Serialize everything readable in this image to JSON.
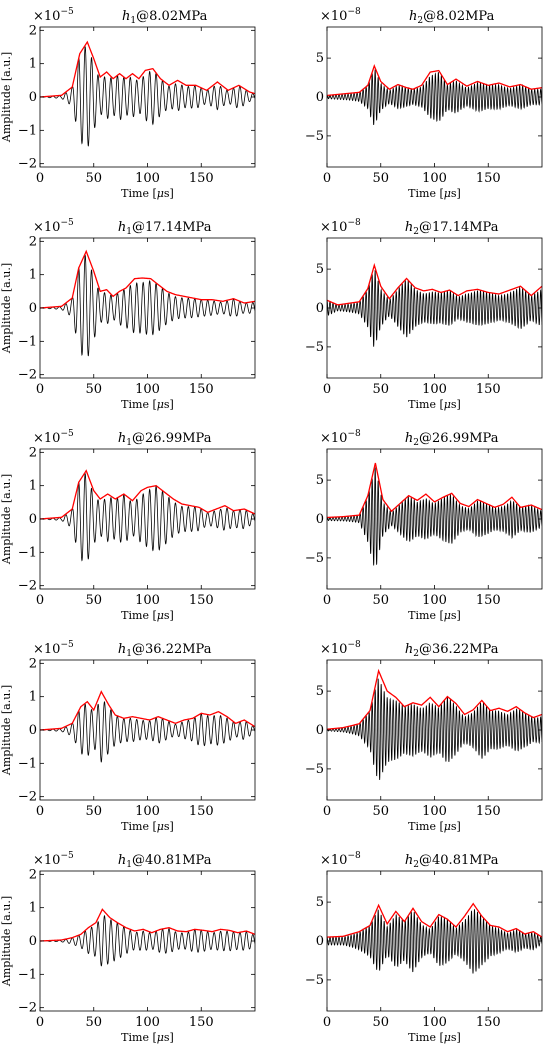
{
  "figure": {
    "rows": 5,
    "cols": 2,
    "ylabel": "Amplitude [a.u.]",
    "xlabel": "Time [μs]"
  },
  "chart_data": [
    {
      "type": "line",
      "title": "h1@8.02MPa",
      "title_var": "h",
      "title_sub": "1",
      "title_rest": "@8.02MPa",
      "exponent_label": "×10^-5",
      "exp_base": "×10",
      "exp_pow": "−5",
      "xlabel": "Time [μs]",
      "ylabel": "Amplitude [a.u.]",
      "xlim": [
        0,
        200
      ],
      "ylim": [
        -2.1,
        2.1
      ],
      "xticks": [
        0,
        50,
        100,
        150
      ],
      "yticks": [
        -2,
        -1,
        0,
        1,
        2
      ],
      "series": [
        {
          "role": "signal",
          "color": "#000000",
          "carrier_period_us": 6.0
        },
        {
          "role": "envelope",
          "color": "#ff0000",
          "x": [
            0,
            20,
            30,
            37,
            44,
            50,
            56,
            62,
            68,
            74,
            80,
            86,
            92,
            98,
            105,
            112,
            120,
            128,
            136,
            145,
            155,
            165,
            175,
            185,
            195,
            200
          ],
          "y": [
            0.0,
            0.05,
            0.3,
            1.3,
            1.65,
            1.15,
            0.6,
            0.75,
            0.55,
            0.7,
            0.55,
            0.7,
            0.55,
            0.8,
            0.85,
            0.55,
            0.35,
            0.5,
            0.35,
            0.35,
            0.2,
            0.45,
            0.2,
            0.35,
            0.15,
            0.1
          ]
        }
      ]
    },
    {
      "type": "line",
      "title": "h2@8.02MPa",
      "title_var": "h",
      "title_sub": "2",
      "title_rest": "@8.02MPa",
      "exponent_label": "×10^-8",
      "exp_base": "×10",
      "exp_pow": "−8",
      "xlabel": "Time [μs]",
      "ylabel": "",
      "xlim": [
        0,
        200
      ],
      "ylim": [
        -9,
        9
      ],
      "xticks": [
        0,
        50,
        100,
        150
      ],
      "yticks": [
        -5,
        0,
        5
      ],
      "series": [
        {
          "role": "signal",
          "color": "#000000",
          "carrier_period_us": 2.8
        },
        {
          "role": "envelope",
          "color": "#ff0000",
          "x": [
            0,
            15,
            30,
            38,
            44,
            50,
            58,
            66,
            74,
            80,
            88,
            96,
            104,
            112,
            120,
            130,
            140,
            150,
            160,
            170,
            180,
            190,
            200
          ],
          "y": [
            0.2,
            0.4,
            0.6,
            1.5,
            4.0,
            2.0,
            1.0,
            1.6,
            1.2,
            1.0,
            1.5,
            3.2,
            3.4,
            1.6,
            2.3,
            1.4,
            2.0,
            1.5,
            1.8,
            1.3,
            1.6,
            1.0,
            1.2
          ]
        }
      ]
    },
    {
      "type": "line",
      "title": "h1@17.14MPa",
      "title_var": "h",
      "title_sub": "1",
      "title_rest": "@17.14MPa",
      "exponent_label": "×10^-5",
      "exp_base": "×10",
      "exp_pow": "−5",
      "xlabel": "Time [μs]",
      "ylabel": "Amplitude [a.u.]",
      "xlim": [
        0,
        200
      ],
      "ylim": [
        -2.1,
        2.1
      ],
      "xticks": [
        0,
        50,
        100,
        150
      ],
      "yticks": [
        -2,
        -1,
        0,
        1,
        2
      ],
      "series": [
        {
          "role": "signal",
          "color": "#000000",
          "carrier_period_us": 6.0
        },
        {
          "role": "envelope",
          "color": "#ff0000",
          "x": [
            0,
            20,
            30,
            36,
            43,
            50,
            56,
            62,
            68,
            74,
            80,
            88,
            95,
            103,
            110,
            118,
            126,
            134,
            142,
            150,
            160,
            170,
            180,
            190,
            200
          ],
          "y": [
            0.0,
            0.05,
            0.3,
            1.2,
            1.7,
            1.1,
            0.5,
            0.55,
            0.35,
            0.5,
            0.6,
            0.88,
            0.9,
            0.88,
            0.7,
            0.5,
            0.4,
            0.35,
            0.3,
            0.25,
            0.25,
            0.2,
            0.28,
            0.15,
            0.2
          ]
        }
      ]
    },
    {
      "type": "line",
      "title": "h2@17.14MPa",
      "title_var": "h",
      "title_sub": "2",
      "title_rest": "@17.14MPa",
      "exponent_label": "×10^-8",
      "exp_base": "×10",
      "exp_pow": "−8",
      "xlabel": "Time [μs]",
      "ylabel": "",
      "xlim": [
        0,
        200
      ],
      "ylim": [
        -9,
        9
      ],
      "xticks": [
        0,
        50,
        100,
        150
      ],
      "yticks": [
        -5,
        0,
        5
      ],
      "series": [
        {
          "role": "signal",
          "color": "#000000",
          "carrier_period_us": 2.8
        },
        {
          "role": "envelope",
          "color": "#ff0000",
          "x": [
            0,
            10,
            20,
            30,
            38,
            44,
            50,
            58,
            66,
            74,
            82,
            90,
            98,
            106,
            114,
            122,
            130,
            140,
            150,
            160,
            170,
            180,
            190,
            200
          ],
          "y": [
            1.0,
            0.4,
            0.6,
            0.8,
            2.5,
            5.5,
            2.8,
            1.2,
            2.6,
            3.8,
            2.6,
            2.2,
            2.4,
            2.0,
            2.3,
            1.6,
            2.2,
            2.4,
            2.0,
            1.8,
            2.3,
            2.8,
            1.6,
            2.8
          ]
        }
      ]
    },
    {
      "type": "line",
      "title": "h1@26.99MPa",
      "title_var": "h",
      "title_sub": "1",
      "title_rest": "@26.99MPa",
      "exponent_label": "×10^-5",
      "exp_base": "×10",
      "exp_pow": "−5",
      "xlabel": "Time [μs]",
      "ylabel": "Amplitude [a.u.]",
      "xlim": [
        0,
        200
      ],
      "ylim": [
        -2.1,
        2.1
      ],
      "xticks": [
        0,
        50,
        100,
        150
      ],
      "yticks": [
        -2,
        -1,
        0,
        1,
        2
      ],
      "series": [
        {
          "role": "signal",
          "color": "#000000",
          "carrier_period_us": 6.0
        },
        {
          "role": "envelope",
          "color": "#ff0000",
          "x": [
            0,
            20,
            30,
            36,
            43,
            50,
            56,
            63,
            70,
            78,
            86,
            94,
            100,
            108,
            116,
            124,
            132,
            140,
            148,
            156,
            164,
            172,
            180,
            190,
            200
          ],
          "y": [
            0.0,
            0.05,
            0.3,
            1.1,
            1.45,
            0.85,
            0.6,
            0.75,
            0.6,
            0.75,
            0.55,
            0.85,
            0.95,
            1.0,
            0.8,
            0.6,
            0.45,
            0.4,
            0.35,
            0.2,
            0.3,
            0.4,
            0.25,
            0.3,
            0.15
          ]
        }
      ]
    },
    {
      "type": "line",
      "title": "h2@26.99MPa",
      "title_var": "h",
      "title_sub": "2",
      "title_rest": "@26.99MPa",
      "exponent_label": "×10^-8",
      "exp_base": "×10",
      "exp_pow": "−8",
      "xlabel": "Time [μs]",
      "ylabel": "",
      "xlim": [
        0,
        200
      ],
      "ylim": [
        -9,
        9
      ],
      "xticks": [
        0,
        50,
        100,
        150
      ],
      "yticks": [
        -5,
        0,
        5
      ],
      "series": [
        {
          "role": "signal",
          "color": "#000000",
          "carrier_period_us": 2.8
        },
        {
          "role": "envelope",
          "color": "#ff0000",
          "x": [
            0,
            15,
            30,
            38,
            45,
            52,
            60,
            68,
            76,
            84,
            92,
            100,
            108,
            116,
            124,
            132,
            140,
            148,
            156,
            164,
            172,
            180,
            190,
            200
          ],
          "y": [
            0.2,
            0.3,
            0.5,
            3.0,
            7.2,
            2.5,
            1.0,
            2.0,
            3.0,
            2.4,
            3.2,
            2.2,
            2.8,
            3.3,
            2.0,
            1.6,
            2.5,
            2.0,
            1.5,
            1.9,
            2.8,
            1.5,
            1.8,
            1.2
          ]
        }
      ]
    },
    {
      "type": "line",
      "title": "h1@36.22MPa",
      "title_var": "h",
      "title_sub": "1",
      "title_rest": "@36.22MPa",
      "exponent_label": "×10^-5",
      "exp_base": "×10",
      "exp_pow": "−5",
      "xlabel": "Time [μs]",
      "ylabel": "Amplitude [a.u.]",
      "xlim": [
        0,
        200
      ],
      "ylim": [
        -2.1,
        2.1
      ],
      "xticks": [
        0,
        50,
        100,
        150
      ],
      "yticks": [
        -2,
        -1,
        0,
        1,
        2
      ],
      "series": [
        {
          "role": "signal",
          "color": "#000000",
          "carrier_period_us": 6.0
        },
        {
          "role": "envelope",
          "color": "#ff0000",
          "x": [
            0,
            20,
            30,
            38,
            44,
            50,
            57,
            64,
            70,
            78,
            86,
            94,
            102,
            110,
            118,
            126,
            134,
            142,
            150,
            158,
            166,
            174,
            182,
            190,
            200
          ],
          "y": [
            0.0,
            0.05,
            0.2,
            0.7,
            0.85,
            0.6,
            1.15,
            0.75,
            0.45,
            0.35,
            0.4,
            0.35,
            0.3,
            0.4,
            0.3,
            0.2,
            0.3,
            0.35,
            0.5,
            0.45,
            0.55,
            0.4,
            0.2,
            0.3,
            0.1
          ]
        }
      ]
    },
    {
      "type": "line",
      "title": "h2@36.22MPa",
      "title_var": "h",
      "title_sub": "2",
      "title_rest": "@36.22MPa",
      "exponent_label": "×10^-8",
      "exp_base": "×10",
      "exp_pow": "−8",
      "xlabel": "Time [μs]",
      "ylabel": "",
      "xlim": [
        0,
        200
      ],
      "ylim": [
        -9,
        9
      ],
      "xticks": [
        0,
        50,
        100,
        150
      ],
      "yticks": [
        -5,
        0,
        5
      ],
      "series": [
        {
          "role": "signal",
          "color": "#000000",
          "carrier_period_us": 2.8
        },
        {
          "role": "envelope",
          "color": "#ff0000",
          "x": [
            0,
            15,
            30,
            40,
            48,
            56,
            64,
            72,
            80,
            88,
            96,
            104,
            112,
            120,
            128,
            136,
            144,
            152,
            160,
            168,
            176,
            184,
            192,
            200
          ],
          "y": [
            0.1,
            0.3,
            0.8,
            2.5,
            7.6,
            5.0,
            4.2,
            3.0,
            3.5,
            3.2,
            4.2,
            3.0,
            4.3,
            3.4,
            2.0,
            2.6,
            3.8,
            2.5,
            2.8,
            2.4,
            3.0,
            2.2,
            1.6,
            2.0
          ]
        }
      ]
    },
    {
      "type": "line",
      "title": "h1@40.81MPa",
      "title_var": "h",
      "title_sub": "1",
      "title_rest": "@40.81MPa",
      "exponent_label": "×10^-5",
      "exp_base": "×10",
      "exp_pow": "−5",
      "xlabel": "Time [μs]",
      "ylabel": "Amplitude [a.u.]",
      "xlim": [
        0,
        200
      ],
      "ylim": [
        -2.1,
        2.1
      ],
      "xticks": [
        0,
        50,
        100,
        150
      ],
      "yticks": [
        -2,
        -1,
        0,
        1,
        2
      ],
      "series": [
        {
          "role": "signal",
          "color": "#000000",
          "carrier_period_us": 6.0
        },
        {
          "role": "envelope",
          "color": "#ff0000",
          "x": [
            0,
            20,
            30,
            38,
            45,
            52,
            58,
            65,
            72,
            80,
            88,
            96,
            104,
            112,
            120,
            128,
            136,
            144,
            152,
            160,
            168,
            176,
            184,
            192,
            200
          ],
          "y": [
            0.0,
            0.03,
            0.1,
            0.2,
            0.4,
            0.55,
            0.95,
            0.7,
            0.55,
            0.4,
            0.3,
            0.35,
            0.25,
            0.35,
            0.4,
            0.3,
            0.28,
            0.35,
            0.32,
            0.28,
            0.35,
            0.32,
            0.25,
            0.3,
            0.2
          ]
        }
      ]
    },
    {
      "type": "line",
      "title": "h2@40.81MPa",
      "title_var": "h",
      "title_sub": "2",
      "title_rest": "@40.81MPa",
      "exponent_label": "×10^-8",
      "exp_base": "×10",
      "exp_pow": "−8",
      "xlabel": "Time [μs]",
      "ylabel": "",
      "xlim": [
        0,
        200
      ],
      "ylim": [
        -9,
        9
      ],
      "xticks": [
        0,
        50,
        100,
        150
      ],
      "yticks": [
        -5,
        0,
        5
      ],
      "series": [
        {
          "role": "signal",
          "color": "#000000",
          "carrier_period_us": 2.8
        },
        {
          "role": "envelope",
          "color": "#ff0000",
          "x": [
            0,
            15,
            30,
            40,
            48,
            56,
            64,
            72,
            80,
            88,
            96,
            104,
            112,
            120,
            128,
            136,
            144,
            152,
            160,
            168,
            176,
            184,
            192,
            200
          ],
          "y": [
            0.5,
            0.6,
            1.2,
            2.0,
            4.6,
            2.2,
            3.8,
            2.5,
            4.2,
            2.5,
            1.8,
            3.4,
            2.8,
            1.8,
            3.2,
            4.8,
            3.2,
            2.0,
            1.8,
            1.2,
            1.6,
            0.9,
            1.2,
            0.5
          ]
        }
      ]
    }
  ]
}
